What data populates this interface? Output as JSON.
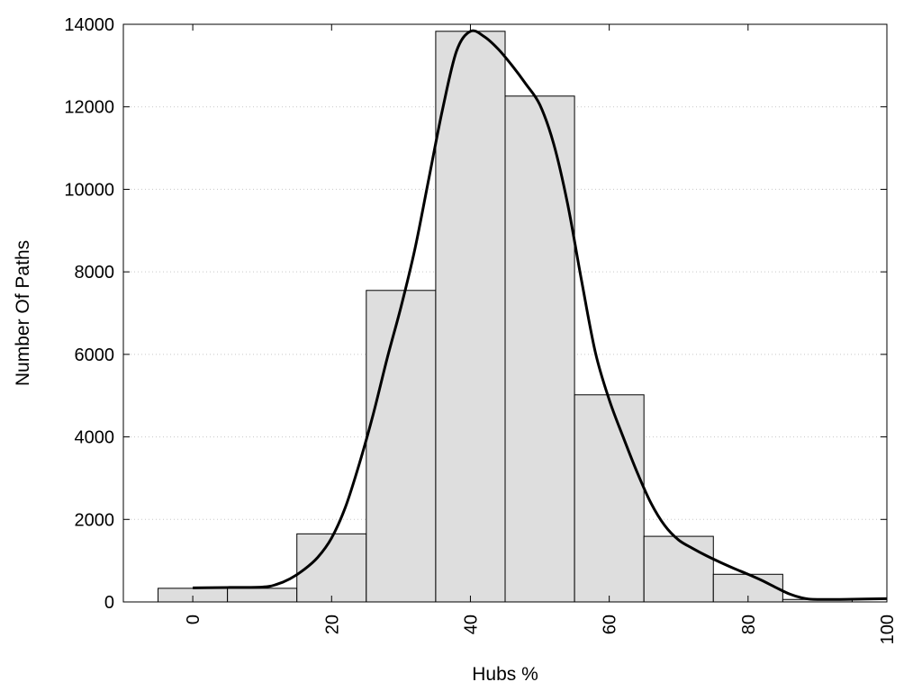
{
  "chart_data": {
    "type": "bar",
    "title": "",
    "xlabel": "Hubs %",
    "ylabel": "Number Of Paths",
    "xlim": [
      -10,
      100
    ],
    "ylim": [
      0,
      14000
    ],
    "x_ticks": [
      0,
      20,
      40,
      60,
      80,
      100
    ],
    "y_ticks": [
      0,
      2000,
      4000,
      6000,
      8000,
      10000,
      12000,
      14000
    ],
    "bin_width": 10,
    "bins": [
      {
        "x": 0,
        "value": 330
      },
      {
        "x": 10,
        "value": 330
      },
      {
        "x": 20,
        "value": 1650
      },
      {
        "x": 30,
        "value": 7550
      },
      {
        "x": 40,
        "value": 13830
      },
      {
        "x": 50,
        "value": 12260
      },
      {
        "x": 60,
        "value": 5020
      },
      {
        "x": 70,
        "value": 1590
      },
      {
        "x": 80,
        "value": 670
      },
      {
        "x": 90,
        "value": 60
      }
    ],
    "curve": [
      [
        0,
        340
      ],
      [
        5,
        350
      ],
      [
        10,
        360
      ],
      [
        12,
        420
      ],
      [
        14,
        560
      ],
      [
        16,
        780
      ],
      [
        18,
        1080
      ],
      [
        20,
        1550
      ],
      [
        22,
        2300
      ],
      [
        24,
        3350
      ],
      [
        26,
        4550
      ],
      [
        28,
        5900
      ],
      [
        30,
        7150
      ],
      [
        32,
        8550
      ],
      [
        34,
        10250
      ],
      [
        36,
        11950
      ],
      [
        38,
        13350
      ],
      [
        40,
        13830
      ],
      [
        42,
        13700
      ],
      [
        44,
        13400
      ],
      [
        46,
        13000
      ],
      [
        48,
        12550
      ],
      [
        50,
        12050
      ],
      [
        52,
        11100
      ],
      [
        54,
        9650
      ],
      [
        56,
        7800
      ],
      [
        58,
        6050
      ],
      [
        60,
        4900
      ],
      [
        62,
        4000
      ],
      [
        64,
        3150
      ],
      [
        66,
        2400
      ],
      [
        68,
        1850
      ],
      [
        70,
        1500
      ],
      [
        72,
        1300
      ],
      [
        74,
        1120
      ],
      [
        76,
        960
      ],
      [
        78,
        810
      ],
      [
        80,
        670
      ],
      [
        82,
        520
      ],
      [
        84,
        350
      ],
      [
        86,
        190
      ],
      [
        88,
        90
      ],
      [
        90,
        60
      ],
      [
        95,
        65
      ],
      [
        100,
        80
      ]
    ],
    "grid": {
      "y": true,
      "x": false,
      "style": "dotted"
    },
    "colors": {
      "bar_fill": "#dedede",
      "bar_stroke": "#000000",
      "curve": "#000000",
      "grid": "#c8c8c8"
    },
    "legend": "none"
  }
}
